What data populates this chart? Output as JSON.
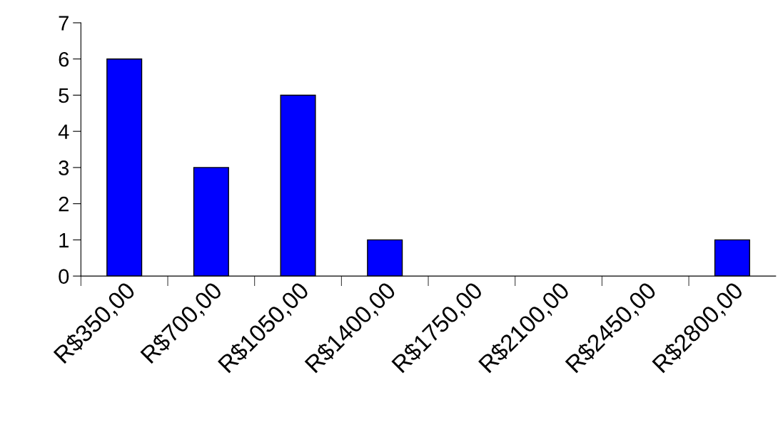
{
  "chart_data": {
    "type": "bar",
    "categories": [
      "R$350,00",
      "R$700,00",
      "R$1050,00",
      "R$1400,00",
      "R$1750,00",
      "R$2100,00",
      "R$2450,00",
      "R$2800,00"
    ],
    "values": [
      6,
      3,
      5,
      1,
      0,
      0,
      0,
      1
    ],
    "color": "#0000ff",
    "ylim": [
      0,
      7
    ],
    "yticks": [
      0,
      1,
      2,
      3,
      4,
      5,
      6,
      7
    ],
    "grid": false
  }
}
